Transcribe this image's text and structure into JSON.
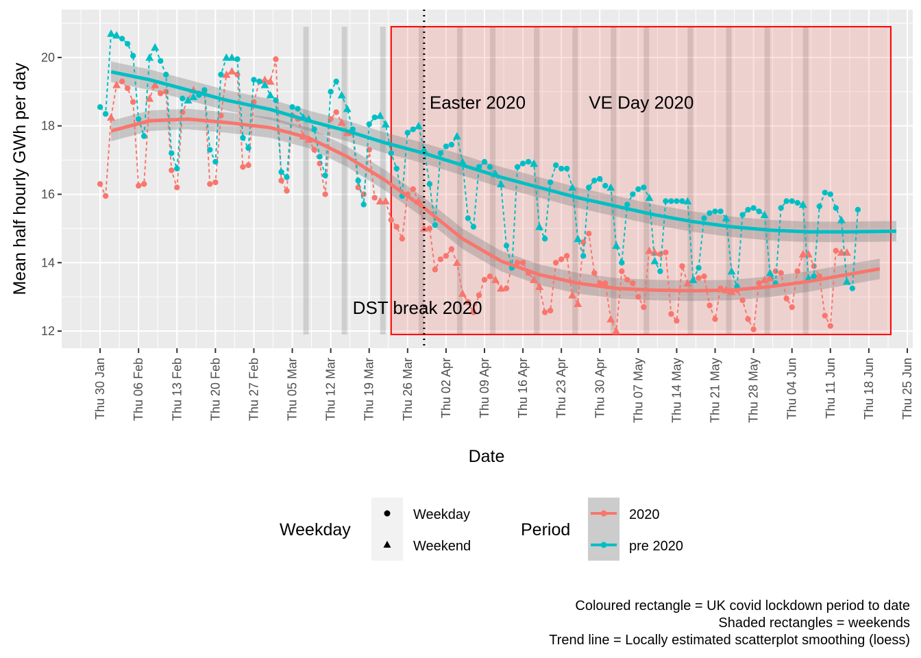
{
  "chart_data": {
    "type": "line",
    "title": "",
    "xlabel": "Date",
    "ylabel": "Mean half hourly GWh per day",
    "xlim": [
      "2020-01-23",
      "2020-06-26"
    ],
    "ylim": [
      11.5,
      21.4
    ],
    "y_ticks": [
      12,
      14,
      16,
      18,
      20
    ],
    "x_tick_dates": [
      "2020-01-30",
      "2020-02-06",
      "2020-02-13",
      "2020-02-20",
      "2020-02-27",
      "2020-03-05",
      "2020-03-12",
      "2020-03-19",
      "2020-03-26",
      "2020-04-02",
      "2020-04-09",
      "2020-04-16",
      "2020-04-23",
      "2020-04-30",
      "2020-05-07",
      "2020-05-14",
      "2020-05-21",
      "2020-05-28",
      "2020-06-04",
      "2020-06-11",
      "2020-06-18",
      "2020-06-25"
    ],
    "x_tick_labels": [
      "Thu 30 Jan",
      "Thu 06 Feb",
      "Thu 13 Feb",
      "Thu 20 Feb",
      "Thu 27 Feb",
      "Thu 05 Mar",
      "Thu 12 Mar",
      "Thu 19 Mar",
      "Thu 26 Mar",
      "Thu 02 Apr",
      "Thu 09 Apr",
      "Thu 16 Apr",
      "Thu 23 Apr",
      "Thu 30 Apr",
      "Thu 07 May",
      "Thu 14 May",
      "Thu 21 May",
      "Thu 28 May",
      "Thu 04 Jun",
      "Thu 11 Jun",
      "Thu 18 Jun",
      "Thu 25 Jun"
    ],
    "grid": true,
    "start_date": "2020-01-30",
    "weekend_starts": [
      "2020-03-07",
      "2020-03-14",
      "2020-03-21",
      "2020-03-28",
      "2020-04-04",
      "2020-04-10",
      "2020-04-18",
      "2020-04-25",
      "2020-05-02",
      "2020-05-08",
      "2020-05-16",
      "2020-05-23",
      "2020-05-30",
      "2020-06-06"
    ],
    "lockdown": {
      "start": "2020-03-23",
      "end": "2020-06-22",
      "ymin": 11.9,
      "ymax": 20.9
    },
    "dst_break": "2020-03-29",
    "series": [
      {
        "name": "2020",
        "color": "#F8766D",
        "values": [
          16.3,
          15.95,
          18.25,
          19.2,
          19.3,
          19.1,
          18.7,
          16.25,
          16.3,
          18.8,
          19.2,
          18.95,
          19.0,
          16.7,
          16.2,
          18.4,
          18.75,
          19.05,
          18.95,
          19.0,
          16.3,
          16.35,
          18.3,
          19.5,
          19.6,
          19.5,
          16.8,
          16.85,
          18.7,
          19.3,
          19.35,
          19.3,
          19.95,
          16.4,
          16.1,
          18.3,
          18.2,
          17.7,
          17.6,
          17.3,
          16.9,
          16.0,
          18.2,
          18.4,
          18.1,
          17.8,
          17.8,
          16.2,
          16.0,
          17.3,
          15.9,
          15.8,
          15.8,
          15.25,
          15.05,
          14.7,
          16.0,
          16.15,
          15.8,
          15.0,
          15.0,
          13.8,
          14.1,
          14.2,
          14.4,
          14.0,
          13.1,
          12.85,
          12.55,
          13.05,
          13.5,
          13.6,
          13.5,
          13.25,
          13.25,
          13.9,
          14.0,
          14.0,
          13.7,
          13.5,
          13.3,
          12.55,
          12.6,
          14.0,
          14.1,
          14.2,
          13.05,
          12.8,
          14.6,
          14.85,
          13.7,
          13.4,
          13.4,
          12.35,
          12.0,
          13.75,
          13.5,
          13.4,
          13.0,
          12.7,
          14.35,
          14.3,
          14.25,
          14.3,
          12.5,
          12.3,
          13.9,
          13.4,
          13.5,
          13.55,
          13.6,
          12.75,
          12.35,
          13.25,
          13.2,
          13.15,
          13.2,
          12.9,
          12.35,
          12.05,
          13.4,
          13.5,
          13.55,
          13.75,
          13.7,
          12.95,
          12.7,
          13.75,
          14.25,
          14.25,
          13.9,
          13.6,
          12.45,
          12.15,
          14.35,
          14.3,
          14.3
        ]
      },
      {
        "name": "pre 2020",
        "color": "#00BFC4",
        "values": [
          18.55,
          18.35,
          20.7,
          20.65,
          20.55,
          20.4,
          20.05,
          18.2,
          17.7,
          20.0,
          20.3,
          19.9,
          19.5,
          17.2,
          16.75,
          18.8,
          18.75,
          18.85,
          18.9,
          19.05,
          17.3,
          16.95,
          19.5,
          20.0,
          20.0,
          19.95,
          17.65,
          17.35,
          19.35,
          19.3,
          19.2,
          18.9,
          18.75,
          16.65,
          16.5,
          18.55,
          18.5,
          18.25,
          18.2,
          17.9,
          17.1,
          16.55,
          19.0,
          19.3,
          18.9,
          18.5,
          17.9,
          16.4,
          15.7,
          18.05,
          18.25,
          18.3,
          18.05,
          17.2,
          16.75,
          15.95,
          17.8,
          17.9,
          18.0,
          17.3,
          16.3,
          15.1,
          17.2,
          17.4,
          17.45,
          17.7,
          16.95,
          15.3,
          15.05,
          16.8,
          16.95,
          16.8,
          16.6,
          16.3,
          14.5,
          13.85,
          16.8,
          16.9,
          16.95,
          16.9,
          15.05,
          14.7,
          16.35,
          16.85,
          16.75,
          16.75,
          16.2,
          14.7,
          14.2,
          16.2,
          16.4,
          16.45,
          16.25,
          16.2,
          14.5,
          14.0,
          15.7,
          16.0,
          16.15,
          16.2,
          15.9,
          14.05,
          13.75,
          15.8,
          15.8,
          15.8,
          15.8,
          15.8,
          13.5,
          13.85,
          15.3,
          15.45,
          15.5,
          15.5,
          15.3,
          13.75,
          13.3,
          15.4,
          15.55,
          15.6,
          15.5,
          15.4,
          13.7,
          13.4,
          15.6,
          15.8,
          15.8,
          15.75,
          15.7,
          13.55,
          13.6,
          15.65,
          16.05,
          16.0,
          15.6,
          15.25,
          13.45,
          13.25,
          15.55
        ]
      }
    ],
    "trend": [
      {
        "name": "2020",
        "dates": [
          "2020-02-01",
          "2020-02-08",
          "2020-02-15",
          "2020-02-22",
          "2020-03-01",
          "2020-03-08",
          "2020-03-15",
          "2020-03-22",
          "2020-03-29",
          "2020-04-05",
          "2020-04-12",
          "2020-04-19",
          "2020-04-26",
          "2020-05-03",
          "2020-05-10",
          "2020-05-17",
          "2020-05-24",
          "2020-05-31",
          "2020-06-07",
          "2020-06-14",
          "2020-06-20"
        ],
        "values": [
          17.85,
          18.15,
          18.2,
          18.1,
          17.95,
          17.65,
          17.1,
          16.4,
          15.6,
          14.7,
          14.05,
          13.65,
          13.4,
          13.25,
          13.2,
          13.18,
          13.2,
          13.3,
          13.45,
          13.65,
          13.82
        ],
        "band_half_width": 0.3
      },
      {
        "name": "pre 2020",
        "dates": [
          "2020-02-01",
          "2020-02-08",
          "2020-02-15",
          "2020-02-22",
          "2020-03-01",
          "2020-03-08",
          "2020-03-15",
          "2020-03-22",
          "2020-03-29",
          "2020-04-05",
          "2020-04-12",
          "2020-04-19",
          "2020-04-26",
          "2020-05-03",
          "2020-05-10",
          "2020-05-17",
          "2020-05-24",
          "2020-05-31",
          "2020-06-07",
          "2020-06-14",
          "2020-06-23"
        ],
        "values": [
          19.58,
          19.35,
          19.05,
          18.75,
          18.48,
          18.15,
          17.85,
          17.5,
          17.2,
          16.85,
          16.5,
          16.2,
          15.9,
          15.65,
          15.4,
          15.2,
          15.05,
          14.95,
          14.9,
          14.9,
          14.92
        ],
        "band_half_width": 0.3
      }
    ],
    "annotations": [
      {
        "text": "Easter 2020",
        "date": "2020-03-30",
        "y": 18.5
      },
      {
        "text": "VE Day 2020",
        "date": "2020-04-28",
        "y": 18.5
      },
      {
        "text": "DST break 2020",
        "date": "2020-03-16",
        "y": 12.5
      }
    ],
    "legend": {
      "placement": "bottom",
      "shape_title": "Weekday",
      "shape_items": [
        "Weekday",
        "Weekend"
      ],
      "color_title": "Period",
      "color_items": [
        "2020",
        "pre 2020"
      ]
    },
    "caption": [
      "Coloured rectangle = UK covid lockdown period to date",
      "Shaded rectangles = weekends",
      "Trend line = Locally estimated scatterplot smoothing (loess)"
    ]
  }
}
